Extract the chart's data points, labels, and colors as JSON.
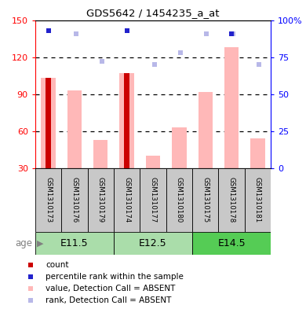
{
  "title": "GDS5642 / 1454235_a_at",
  "samples": [
    "GSM1310173",
    "GSM1310176",
    "GSM1310179",
    "GSM1310174",
    "GSM1310177",
    "GSM1310180",
    "GSM1310175",
    "GSM1310178",
    "GSM1310181"
  ],
  "count_values": [
    103,
    0,
    0,
    107,
    0,
    0,
    0,
    0,
    0
  ],
  "percentile_values": [
    93,
    0,
    0,
    93,
    0,
    0,
    0,
    91,
    0
  ],
  "absent_value_values": [
    103,
    93,
    53,
    107,
    40,
    63,
    92,
    128,
    54
  ],
  "absent_rank_values": [
    0,
    91,
    72,
    0,
    70,
    78,
    91,
    91,
    70
  ],
  "ylim_left": [
    30,
    150
  ],
  "ylim_right": [
    0,
    100
  ],
  "yticks_left": [
    30,
    60,
    90,
    120,
    150
  ],
  "yticks_right": [
    0,
    25,
    50,
    75,
    100
  ],
  "ytick_labels_right": [
    "0",
    "25",
    "50",
    "75",
    "100%"
  ],
  "count_color": "#cc0000",
  "percentile_color": "#2222cc",
  "absent_value_color": "#ffb8b8",
  "absent_rank_color": "#b8b8e8",
  "sample_bg_color": "#c8c8c8",
  "age_group_e115_color": "#aaddaa",
  "age_group_e125_color": "#aaddaa",
  "age_group_e145_color": "#55cc55",
  "age_groups": [
    {
      "label": "E11.5",
      "start": 0,
      "end": 2
    },
    {
      "label": "E12.5",
      "start": 3,
      "end": 5
    },
    {
      "label": "E14.5",
      "start": 6,
      "end": 8
    }
  ],
  "legend_items": [
    {
      "color": "#cc0000",
      "label": "count"
    },
    {
      "color": "#2222cc",
      "label": "percentile rank within the sample"
    },
    {
      "color": "#ffb8b8",
      "label": "value, Detection Call = ABSENT"
    },
    {
      "color": "#b8b8e8",
      "label": "rank, Detection Call = ABSENT"
    }
  ]
}
